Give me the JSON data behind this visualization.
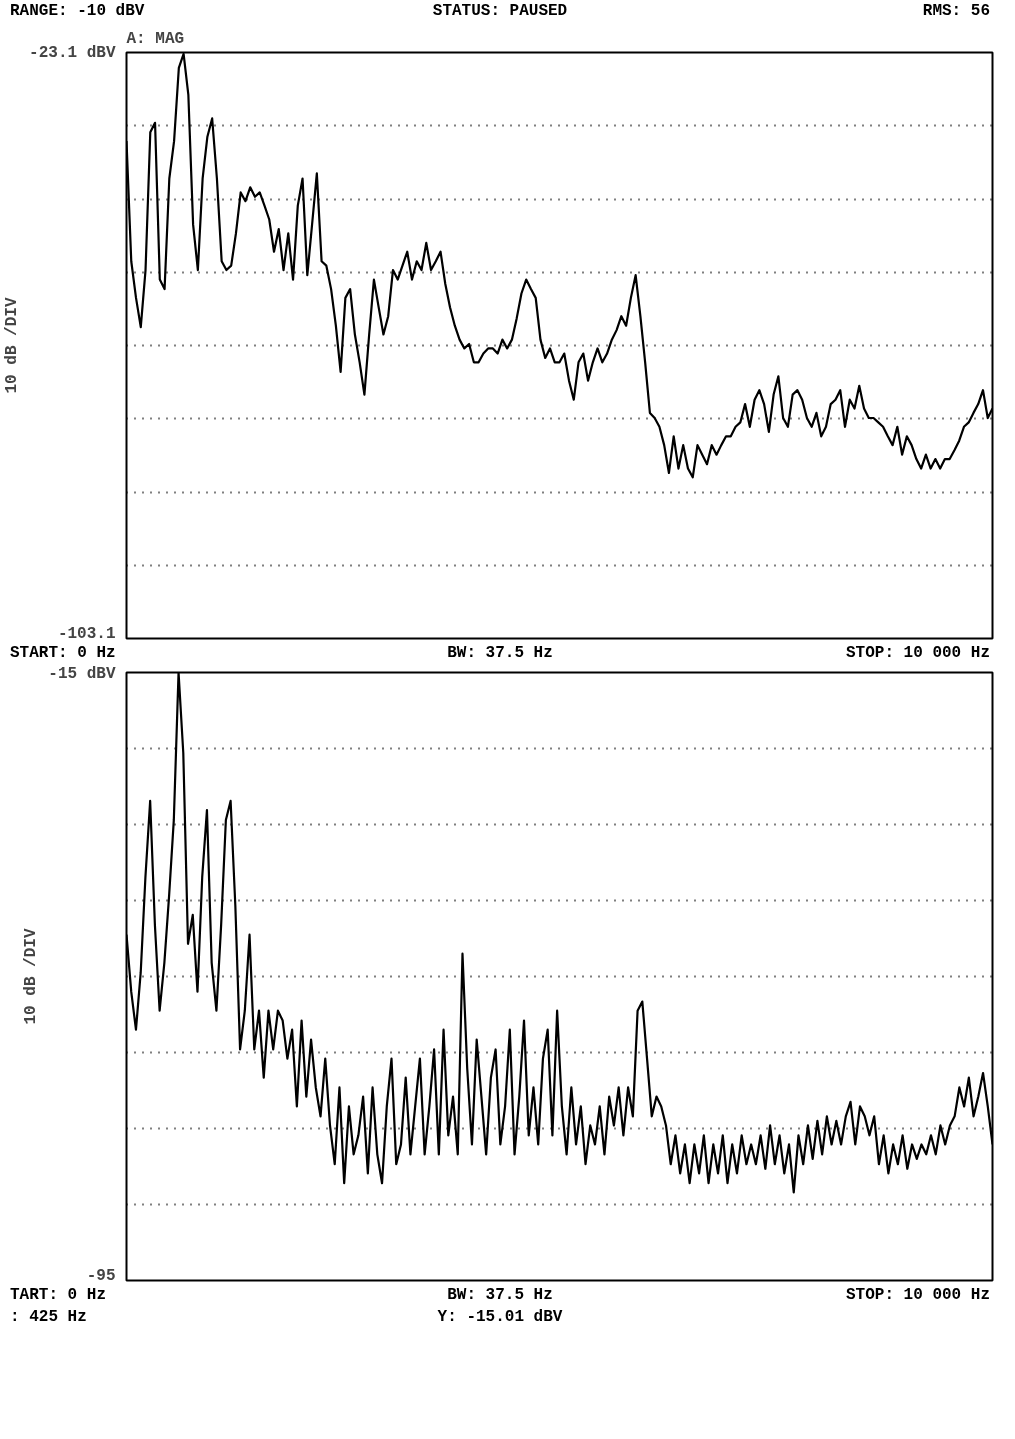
{
  "chart_data": [
    {
      "type": "line",
      "title": "A: MAG",
      "ylabel": "10 dB /DIV",
      "annotations": [
        "RANGE: -10 dBV",
        "STATUS: PAUSED",
        "RMS: 56",
        "START: 0 Hz",
        "BW: 37.5 Hz",
        "STOP: 10 000 Hz"
      ],
      "categories": [
        null,
        null,
        null,
        null,
        null,
        null,
        null,
        null,
        null,
        null,
        null,
        null,
        null,
        null,
        null,
        null,
        null,
        null,
        null,
        null,
        null,
        null,
        null,
        null,
        null,
        null,
        null,
        null,
        null,
        null,
        null,
        null,
        null,
        null,
        null,
        null,
        null,
        null,
        null,
        null,
        null,
        null,
        null,
        null,
        null,
        null,
        null,
        null,
        null,
        null,
        null,
        null,
        null,
        null,
        null,
        null,
        null,
        null,
        null,
        null,
        null,
        null,
        null,
        null,
        null,
        null,
        null,
        null,
        null,
        null,
        null,
        null,
        null,
        null,
        null,
        null,
        null,
        null,
        null,
        null,
        null,
        null,
        null,
        null,
        null,
        null,
        null,
        null,
        null,
        null,
        null,
        null,
        null,
        null,
        null,
        null,
        null,
        null,
        null,
        null,
        null,
        null,
        null,
        null,
        null,
        null,
        null,
        null,
        null,
        null,
        null,
        null,
        null,
        null,
        null,
        null,
        null,
        null,
        null,
        null,
        null,
        null,
        null,
        null,
        null,
        null,
        null,
        null,
        null,
        null,
        null,
        null,
        null,
        null,
        null,
        null,
        null,
        null,
        null,
        null,
        null,
        null,
        null,
        null,
        null,
        null,
        null,
        null,
        null,
        null,
        null,
        null,
        null,
        null,
        null,
        null,
        null,
        null,
        null,
        null,
        null,
        null,
        null,
        null,
        null,
        null,
        null,
        null,
        null,
        null,
        null,
        null,
        null,
        null,
        null,
        null,
        null,
        null,
        null,
        null,
        null,
        null,
        null
      ],
      "ylim": [
        -103.1,
        -23.1
      ],
      "yticks": [
        {
          "value": -23.1,
          "label": "-23.1 dBV"
        },
        {
          "value": -33.1,
          "label": null
        },
        {
          "value": -43.1,
          "label": null
        },
        {
          "value": -53.1,
          "label": null
        },
        {
          "value": -63.1,
          "label": null
        },
        {
          "value": -73.1,
          "label": null
        },
        {
          "value": -83.1,
          "label": null
        },
        {
          "value": -93.1,
          "label": null
        },
        {
          "value": -103.1,
          "label": "-103.1"
        }
      ],
      "tick_labels": "y",
      "grid": "y",
      "line_style": "solid",
      "series": [
        {
          "color": "#000000",
          "values": [
            -35.2,
            -51.6,
            -56.6,
            -60.6,
            -52.8,
            -34.0,
            -32.7,
            -54.1,
            -55.4,
            -40.3,
            -35.2,
            -25.2,
            -23.3,
            -28.9,
            -46.6,
            -52.8,
            -40.3,
            -34.6,
            -32.1,
            -40.3,
            -51.6,
            -52.8,
            -52.2,
            -47.8,
            -42.2,
            -43.4,
            -41.5,
            -42.8,
            -42.2,
            -44.0,
            -45.9,
            -50.3,
            -47.2,
            -52.8,
            -47.8,
            -54.1,
            -44.0,
            -40.3,
            -53.5,
            -46.6,
            -39.6,
            -51.6,
            -52.2,
            -55.4,
            -60.4,
            -66.7,
            -56.6,
            -55.4,
            -61.6,
            -65.4,
            -69.8,
            -61.6,
            -54.1,
            -57.9,
            -61.6,
            -59.1,
            -52.8,
            -54.1,
            -52.2,
            -50.3,
            -54.1,
            -51.6,
            -52.8,
            -49.1,
            -52.8,
            -51.6,
            -50.3,
            -54.7,
            -57.9,
            -60.4,
            -62.3,
            -63.5,
            -62.9,
            -65.4,
            -65.4,
            -64.2,
            -63.5,
            -63.5,
            -64.2,
            -62.3,
            -63.5,
            -62.3,
            -59.4,
            -56.0,
            -54.1,
            -55.4,
            -56.6,
            -62.3,
            -64.8,
            -63.5,
            -65.4,
            -65.4,
            -64.2,
            -67.9,
            -70.5,
            -65.4,
            -64.2,
            -67.9,
            -65.4,
            -63.5,
            -65.4,
            -64.2,
            -62.3,
            -61.0,
            -59.1,
            -60.4,
            -56.6,
            -53.5,
            -59.1,
            -65.4,
            -72.3,
            -73.0,
            -74.2,
            -76.7,
            -80.5,
            -75.5,
            -79.9,
            -76.7,
            -79.9,
            -81.1,
            -76.7,
            -78.0,
            -79.3,
            -76.7,
            -78.0,
            -76.7,
            -75.5,
            -75.5,
            -74.2,
            -73.6,
            -71.1,
            -74.2,
            -70.5,
            -69.2,
            -71.1,
            -74.9,
            -69.8,
            -67.3,
            -73.0,
            -74.2,
            -69.8,
            -69.2,
            -70.5,
            -73.0,
            -74.2,
            -72.3,
            -75.5,
            -74.2,
            -71.1,
            -70.5,
            -69.2,
            -74.2,
            -70.5,
            -71.7,
            -68.6,
            -71.7,
            -73.0,
            -73.0,
            -73.6,
            -74.2,
            -75.5,
            -76.7,
            -74.2,
            -78.0,
            -75.5,
            -76.7,
            -78.6,
            -79.9,
            -78.0,
            -79.9,
            -78.6,
            -79.9,
            -78.6,
            -78.6,
            -77.4,
            -76.1,
            -74.2,
            -73.6,
            -72.3,
            -71.1,
            -69.2,
            -73.0,
            -71.7
          ]
        }
      ]
    },
    {
      "type": "line",
      "ylabel": "10 dB /DIV",
      "annotations": [
        "TART: 0 Hz",
        "BW: 37.5 Hz",
        "STOP: 10 000 Hz",
        ": 425 Hz",
        "Y: -15.01 dBV"
      ],
      "categories": [
        null,
        null,
        null,
        null,
        null,
        null,
        null,
        null,
        null,
        null,
        null,
        null,
        null,
        null,
        null,
        null,
        null,
        null,
        null,
        null,
        null,
        null,
        null,
        null,
        null,
        null,
        null,
        null,
        null,
        null,
        null,
        null,
        null,
        null,
        null,
        null,
        null,
        null,
        null,
        null,
        null,
        null,
        null,
        null,
        null,
        null,
        null,
        null,
        null,
        null,
        null,
        null,
        null,
        null,
        null,
        null,
        null,
        null,
        null,
        null,
        null,
        null,
        null,
        null,
        null,
        null,
        null,
        null,
        null,
        null,
        null,
        null,
        null,
        null,
        null,
        null,
        null,
        null,
        null,
        null,
        null,
        null,
        null,
        null,
        null,
        null,
        null,
        null,
        null,
        null,
        null,
        null,
        null,
        null,
        null,
        null,
        null,
        null,
        null,
        null,
        null,
        null,
        null,
        null,
        null,
        null,
        null,
        null,
        null,
        null,
        null,
        null,
        null,
        null,
        null,
        null,
        null,
        null,
        null,
        null,
        null,
        null,
        null,
        null,
        null,
        null,
        null,
        null,
        null,
        null,
        null,
        null,
        null,
        null,
        null,
        null,
        null,
        null,
        null,
        null,
        null,
        null,
        null,
        null,
        null,
        null,
        null,
        null,
        null,
        null,
        null,
        null,
        null,
        null,
        null,
        null,
        null,
        null,
        null,
        null,
        null,
        null,
        null,
        null,
        null,
        null,
        null,
        null,
        null,
        null,
        null,
        null,
        null,
        null,
        null,
        null,
        null,
        null,
        null,
        null,
        null,
        null,
        null,
        null
      ],
      "ylim": [
        -95,
        -15
      ],
      "yticks": [
        {
          "value": -15,
          "label": "-15 dBV"
        },
        {
          "value": -25,
          "label": null
        },
        {
          "value": -35,
          "label": null
        },
        {
          "value": -45,
          "label": null
        },
        {
          "value": -55,
          "label": null
        },
        {
          "value": -65,
          "label": null
        },
        {
          "value": -75,
          "label": null
        },
        {
          "value": -85,
          "label": null
        },
        {
          "value": -95,
          "label": "-95"
        }
      ],
      "tick_labels": "y",
      "grid": "y",
      "line_style": "solid",
      "series": [
        {
          "color": "#000000",
          "values": [
            -49.5,
            -57.0,
            -62.0,
            -54.5,
            -41.9,
            -31.9,
            -48.2,
            -59.5,
            -53.2,
            -44.4,
            -34.4,
            -15.0,
            -25.6,
            -50.7,
            -46.9,
            -57.0,
            -41.9,
            -33.1,
            -53.2,
            -59.5,
            -48.2,
            -34.4,
            -31.9,
            -45.7,
            -64.6,
            -59.5,
            -49.5,
            -64.6,
            -59.5,
            -68.3,
            -59.5,
            -64.6,
            -59.5,
            -60.8,
            -65.8,
            -62.0,
            -72.1,
            -60.8,
            -70.8,
            -63.3,
            -69.6,
            -73.4,
            -65.8,
            -74.6,
            -79.7,
            -69.6,
            -82.2,
            -72.1,
            -78.4,
            -75.9,
            -70.8,
            -80.9,
            -69.6,
            -78.4,
            -82.2,
            -72.1,
            -65.8,
            -79.7,
            -77.1,
            -68.3,
            -78.4,
            -72.1,
            -65.8,
            -78.4,
            -72.1,
            -64.6,
            -78.4,
            -62.0,
            -75.9,
            -70.8,
            -78.4,
            -52.0,
            -67.1,
            -77.1,
            -63.3,
            -70.8,
            -78.4,
            -68.3,
            -64.6,
            -77.1,
            -72.1,
            -62.0,
            -78.4,
            -70.8,
            -60.8,
            -75.9,
            -69.6,
            -77.1,
            -65.8,
            -62.0,
            -75.9,
            -59.5,
            -72.1,
            -78.4,
            -69.6,
            -77.1,
            -72.1,
            -79.7,
            -74.6,
            -77.1,
            -72.1,
            -78.4,
            -70.8,
            -74.6,
            -69.6,
            -75.9,
            -69.6,
            -73.4,
            -59.5,
            -58.3,
            -65.8,
            -73.4,
            -70.8,
            -72.1,
            -74.6,
            -79.7,
            -75.9,
            -80.9,
            -77.1,
            -82.2,
            -77.1,
            -80.9,
            -75.9,
            -82.2,
            -77.1,
            -80.9,
            -75.9,
            -82.2,
            -77.1,
            -80.9,
            -75.9,
            -79.7,
            -77.1,
            -79.7,
            -75.9,
            -80.3,
            -74.6,
            -79.7,
            -75.9,
            -80.9,
            -77.1,
            -83.4,
            -75.9,
            -79.7,
            -74.6,
            -79.0,
            -74.0,
            -78.4,
            -73.4,
            -77.1,
            -74.0,
            -77.1,
            -73.4,
            -71.5,
            -77.1,
            -72.1,
            -73.4,
            -75.9,
            -73.4,
            -79.7,
            -75.9,
            -80.9,
            -77.1,
            -79.7,
            -75.9,
            -80.3,
            -77.1,
            -79.0,
            -77.1,
            -78.4,
            -75.9,
            -78.4,
            -74.6,
            -77.1,
            -74.6,
            -73.4,
            -69.6,
            -72.1,
            -68.3,
            -73.4,
            -70.8,
            -67.7,
            -72.1,
            -77.1
          ]
        }
      ]
    }
  ]
}
